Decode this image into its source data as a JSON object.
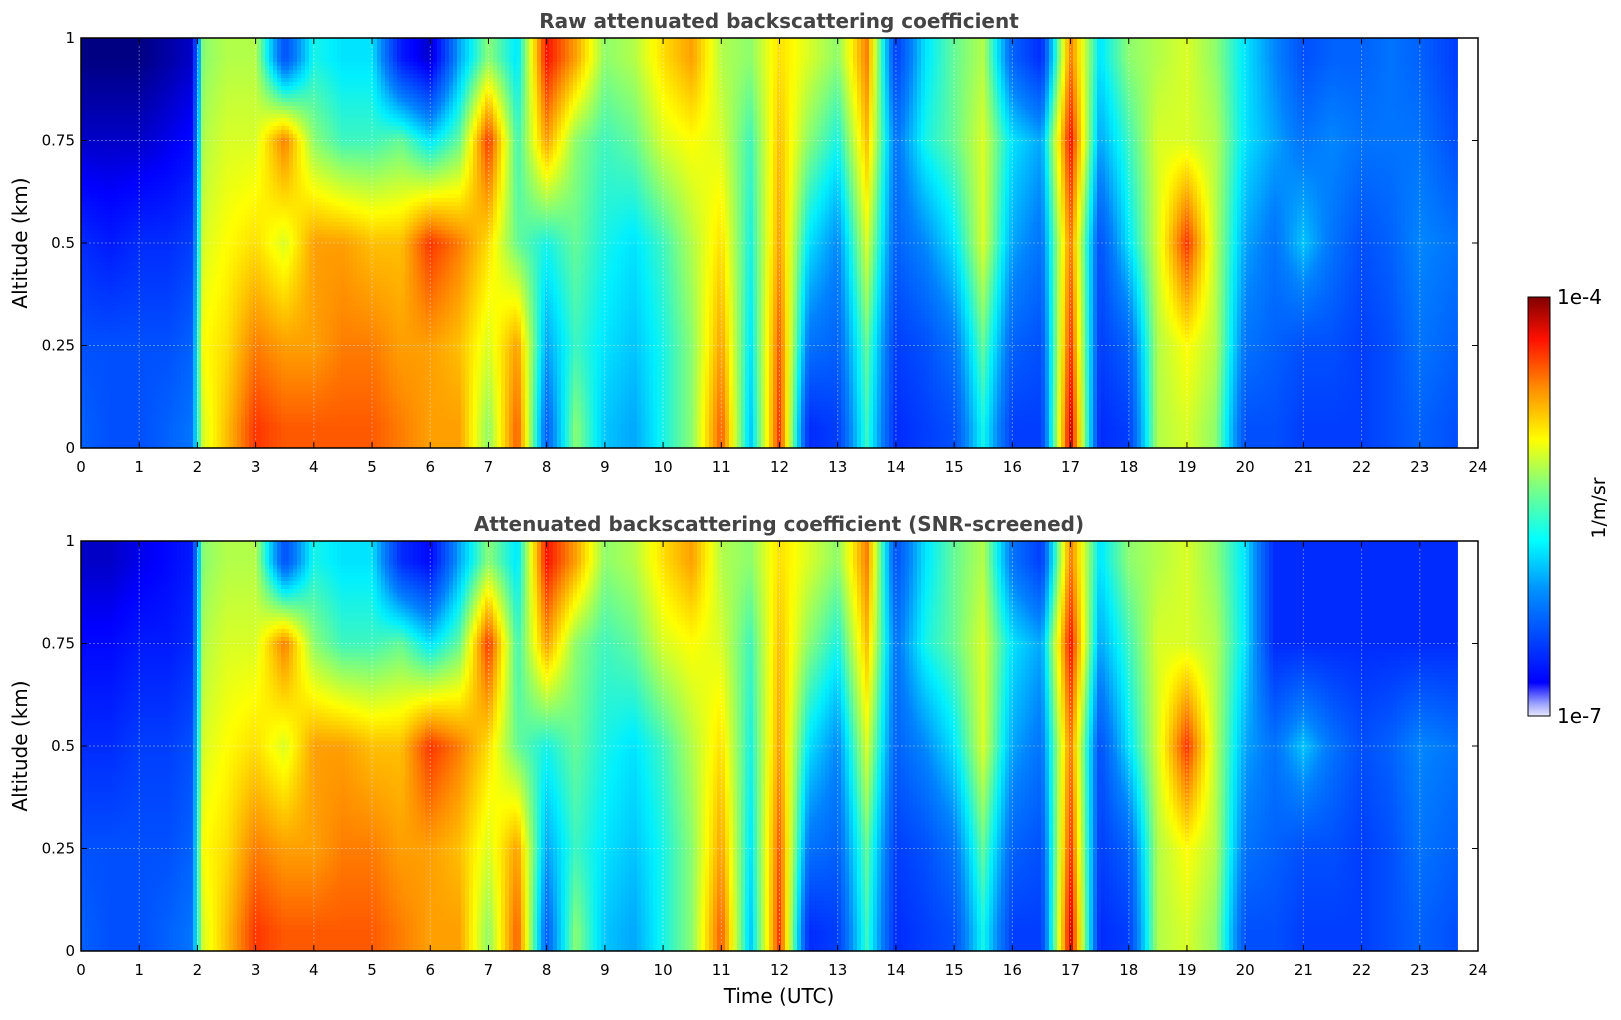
{
  "chart_data": [
    {
      "type": "heatmap",
      "title": "Raw attenuated backscattering coefficient",
      "xlabel": "",
      "ylabel": "Altitude (km)",
      "xlim": [
        0,
        24
      ],
      "ylim": [
        0,
        1
      ],
      "x_ticks": [
        "0",
        "1",
        "2",
        "3",
        "4",
        "5",
        "6",
        "7",
        "8",
        "9",
        "10",
        "11",
        "12",
        "13",
        "14",
        "15",
        "16",
        "17",
        "18",
        "19",
        "20",
        "21",
        "22",
        "23",
        "24"
      ],
      "y_ticks": [
        "0",
        "0.25",
        "0.5",
        "0.75",
        "1"
      ],
      "grid": true,
      "colormap": "jet",
      "color_scale": "log",
      "value_range": [
        "1e-7",
        "1e-4"
      ],
      "x_time_utc_h": [
        0,
        0.5,
        1,
        1.5,
        1.9,
        2.1,
        2.5,
        3,
        3.5,
        4,
        4.5,
        5,
        5.5,
        6,
        6.5,
        7,
        7.5,
        8,
        8.5,
        9,
        9.5,
        10,
        10.5,
        11,
        11.5,
        12,
        12.5,
        13,
        13.5,
        14,
        14.5,
        15,
        15.5,
        16,
        16.5,
        17,
        17.5,
        18,
        18.5,
        19,
        19.5,
        20,
        20.5,
        21,
        21.5,
        22,
        22.5,
        23,
        23.6
      ],
      "y_altitude_km": [
        0.05,
        0.25,
        0.5,
        0.75,
        0.95
      ],
      "log10_values": [
        [
          -6.1,
          -6.2,
          -6.4,
          -6.8,
          -7.0
        ],
        [
          -6.2,
          -6.2,
          -6.5,
          -6.8,
          -7.0
        ],
        [
          -6.2,
          -6.2,
          -6.4,
          -6.8,
          -7.0
        ],
        [
          -6.1,
          -6.2,
          -6.4,
          -6.7,
          -6.9
        ],
        [
          -6.0,
          -6.1,
          -6.3,
          -6.6,
          -6.8
        ],
        [
          -5.0,
          -4.9,
          -5.0,
          -5.1,
          -5.2
        ],
        [
          -4.7,
          -4.8,
          -4.9,
          -5.0,
          -5.1
        ],
        [
          -4.3,
          -4.5,
          -4.8,
          -5.0,
          -5.1
        ],
        [
          -4.4,
          -4.6,
          -5.0,
          -4.5,
          -6.2
        ],
        [
          -4.4,
          -4.6,
          -4.6,
          -5.2,
          -5.5
        ],
        [
          -4.4,
          -4.5,
          -4.6,
          -5.4,
          -5.6
        ],
        [
          -4.4,
          -4.5,
          -4.7,
          -5.4,
          -5.6
        ],
        [
          -4.5,
          -4.6,
          -4.7,
          -5.3,
          -6.5
        ],
        [
          -4.6,
          -4.6,
          -4.3,
          -5.6,
          -6.8
        ],
        [
          -4.6,
          -4.7,
          -4.5,
          -5.3,
          -5.8
        ],
        [
          -5.2,
          -5.0,
          -4.8,
          -4.3,
          -5.2
        ],
        [
          -4.4,
          -4.6,
          -5.3,
          -5.4,
          -5.6
        ],
        [
          -6.1,
          -5.8,
          -5.5,
          -4.6,
          -4.2
        ],
        [
          -5.2,
          -5.4,
          -5.3,
          -5.2,
          -4.6
        ],
        [
          -5.7,
          -5.6,
          -5.5,
          -5.4,
          -5.2
        ],
        [
          -5.8,
          -5.7,
          -5.6,
          -5.3,
          -5.1
        ],
        [
          -5.5,
          -5.5,
          -5.4,
          -5.0,
          -4.8
        ],
        [
          -5.2,
          -5.2,
          -5.1,
          -4.9,
          -4.6
        ],
        [
          -4.4,
          -4.6,
          -4.8,
          -5.0,
          -5.1
        ],
        [
          -5.7,
          -5.6,
          -5.5,
          -5.4,
          -5.2
        ],
        [
          -4.3,
          -4.4,
          -4.6,
          -4.7,
          -4.8
        ],
        [
          -6.4,
          -6.0,
          -5.6,
          -5.2,
          -5.0
        ],
        [
          -6.3,
          -6.1,
          -5.9,
          -5.5,
          -5.2
        ],
        [
          -5.4,
          -5.3,
          -5.0,
          -4.7,
          -4.5
        ],
        [
          -6.4,
          -6.3,
          -6.1,
          -6.0,
          -6.3
        ],
        [
          -6.3,
          -6.2,
          -5.9,
          -5.5,
          -5.6
        ],
        [
          -6.2,
          -6.0,
          -5.6,
          -5.3,
          -5.3
        ],
        [
          -5.5,
          -5.3,
          -5.0,
          -5.0,
          -5.1
        ],
        [
          -6.3,
          -6.1,
          -5.8,
          -5.6,
          -6.1
        ],
        [
          -6.3,
          -6.2,
          -6.0,
          -5.8,
          -6.4
        ],
        [
          -4.1,
          -4.3,
          -4.5,
          -4.2,
          -4.5
        ],
        [
          -6.4,
          -6.3,
          -6.2,
          -5.8,
          -5.6
        ],
        [
          -6.3,
          -6.1,
          -5.6,
          -5.4,
          -5.2
        ],
        [
          -5.1,
          -5.1,
          -5.0,
          -5.0,
          -5.1
        ],
        [
          -5.0,
          -4.9,
          -4.3,
          -5.0,
          -5.0
        ],
        [
          -5.2,
          -5.1,
          -5.1,
          -5.1,
          -5.2
        ],
        [
          -6.2,
          -6.0,
          -5.8,
          -5.6,
          -5.6
        ],
        [
          -6.2,
          -6.1,
          -6.0,
          -5.8,
          -5.9
        ],
        [
          -6.3,
          -6.2,
          -5.7,
          -6.0,
          -6.2
        ],
        [
          -6.3,
          -6.2,
          -6.0,
          -5.9,
          -6.1
        ],
        [
          -6.3,
          -6.3,
          -6.2,
          -6.0,
          -6.1
        ],
        [
          -6.2,
          -6.2,
          -6.1,
          -6.0,
          -6.0
        ],
        [
          -6.1,
          -6.0,
          -5.9,
          -6.0,
          -6.1
        ],
        [
          -6.2,
          -6.1,
          -6.0,
          -6.2,
          -6.3
        ]
      ]
    },
    {
      "type": "heatmap",
      "title": "Attenuated backscattering coefficient (SNR-screened)",
      "xlabel": "Time (UTC)",
      "ylabel": "Altitude (km)",
      "xlim": [
        0,
        24
      ],
      "ylim": [
        0,
        1
      ],
      "x_ticks": [
        "0",
        "1",
        "2",
        "3",
        "4",
        "5",
        "6",
        "7",
        "8",
        "9",
        "10",
        "11",
        "12",
        "13",
        "14",
        "15",
        "16",
        "17",
        "18",
        "19",
        "20",
        "21",
        "22",
        "23",
        "24"
      ],
      "y_ticks": [
        "0",
        "0.25",
        "0.5",
        "0.75",
        "1"
      ],
      "grid": true,
      "colormap": "jet",
      "color_scale": "log",
      "value_range": [
        "1e-7",
        "1e-4"
      ],
      "x_time_utc_h": [
        0,
        0.5,
        1,
        1.5,
        1.9,
        2.1,
        2.5,
        3,
        3.5,
        4,
        4.5,
        5,
        5.5,
        6,
        6.5,
        7,
        7.5,
        8,
        8.5,
        9,
        9.5,
        10,
        10.5,
        11,
        11.5,
        12,
        12.5,
        13,
        13.5,
        14,
        14.5,
        15,
        15.5,
        16,
        16.5,
        17,
        17.5,
        18,
        18.5,
        19,
        19.5,
        20,
        20.5,
        21,
        21.5,
        22,
        22.5,
        23,
        23.6
      ],
      "y_altitude_km": [
        0.05,
        0.25,
        0.5,
        0.75,
        0.95
      ],
      "log10_values": [
        [
          -6.1,
          -6.2,
          -6.4,
          -6.6,
          -6.8
        ],
        [
          -6.2,
          -6.2,
          -6.4,
          -6.6,
          -6.8
        ],
        [
          -6.2,
          -6.2,
          -6.3,
          -6.5,
          -6.7
        ],
        [
          -6.1,
          -6.2,
          -6.3,
          -6.5,
          -6.6
        ],
        [
          -6.0,
          -6.1,
          -6.2,
          -6.4,
          -6.5
        ],
        [
          -5.0,
          -4.9,
          -5.0,
          -5.1,
          -5.2
        ],
        [
          -4.7,
          -4.8,
          -4.9,
          -5.0,
          -5.1
        ],
        [
          -4.3,
          -4.5,
          -4.8,
          -5.0,
          -5.1
        ],
        [
          -4.4,
          -4.6,
          -5.0,
          -4.5,
          -6.2
        ],
        [
          -4.4,
          -4.6,
          -4.6,
          -5.2,
          -5.5
        ],
        [
          -4.4,
          -4.5,
          -4.6,
          -5.4,
          -5.6
        ],
        [
          -4.4,
          -4.5,
          -4.7,
          -5.4,
          -5.6
        ],
        [
          -4.5,
          -4.6,
          -4.7,
          -5.3,
          -6.4
        ],
        [
          -4.6,
          -4.6,
          -4.3,
          -5.6,
          -6.6
        ],
        [
          -4.6,
          -4.7,
          -4.5,
          -5.3,
          -5.8
        ],
        [
          -5.2,
          -5.0,
          -4.8,
          -4.3,
          -5.2
        ],
        [
          -4.4,
          -4.6,
          -5.3,
          -5.4,
          -5.6
        ],
        [
          -6.1,
          -5.8,
          -5.5,
          -4.6,
          -4.2
        ],
        [
          -5.2,
          -5.4,
          -5.3,
          -5.2,
          -4.6
        ],
        [
          -5.7,
          -5.6,
          -5.5,
          -5.4,
          -5.2
        ],
        [
          -5.8,
          -5.7,
          -5.6,
          -5.3,
          -5.1
        ],
        [
          -5.5,
          -5.5,
          -5.4,
          -5.0,
          -4.8
        ],
        [
          -5.2,
          -5.2,
          -5.1,
          -4.9,
          -4.6
        ],
        [
          -4.4,
          -4.6,
          -4.8,
          -5.0,
          -5.1
        ],
        [
          -5.7,
          -5.6,
          -5.5,
          -5.4,
          -5.2
        ],
        [
          -4.3,
          -4.4,
          -4.6,
          -4.7,
          -4.8
        ],
        [
          -6.4,
          -6.0,
          -5.6,
          -5.2,
          -5.0
        ],
        [
          -6.3,
          -6.1,
          -5.9,
          -5.5,
          -5.2
        ],
        [
          -5.4,
          -5.3,
          -5.0,
          -4.7,
          -4.5
        ],
        [
          -6.4,
          -6.3,
          -6.1,
          -6.0,
          -6.2
        ],
        [
          -6.3,
          -6.2,
          -5.9,
          -5.5,
          -5.6
        ],
        [
          -6.2,
          -6.0,
          -5.6,
          -5.3,
          -5.3
        ],
        [
          -5.5,
          -5.3,
          -5.0,
          -5.0,
          -5.1
        ],
        [
          -6.3,
          -6.1,
          -5.8,
          -5.6,
          -6.0
        ],
        [
          -6.3,
          -6.2,
          -6.0,
          -5.8,
          -6.3
        ],
        [
          -4.1,
          -4.3,
          -4.5,
          -4.2,
          -4.5
        ],
        [
          -6.4,
          -6.3,
          -6.2,
          -5.8,
          -5.6
        ],
        [
          -6.3,
          -6.1,
          -5.6,
          -5.4,
          -5.2
        ],
        [
          -5.1,
          -5.1,
          -5.0,
          -5.0,
          -5.1
        ],
        [
          -5.0,
          -4.9,
          -4.3,
          -5.0,
          -5.0
        ],
        [
          -5.2,
          -5.1,
          -5.1,
          -5.1,
          -5.2
        ],
        [
          -6.2,
          -6.0,
          -5.8,
          -5.6,
          -5.6
        ],
        [
          -6.2,
          -6.1,
          -6.0,
          -6.4,
          -6.4
        ],
        [
          -6.3,
          -6.2,
          -5.7,
          -6.4,
          -6.4
        ],
        [
          -6.3,
          -6.2,
          -6.0,
          -6.4,
          -6.4
        ],
        [
          -6.3,
          -6.3,
          -6.2,
          -6.4,
          -6.4
        ],
        [
          -6.2,
          -6.2,
          -6.1,
          -6.4,
          -6.4
        ],
        [
          -6.1,
          -6.0,
          -5.9,
          -6.4,
          -6.4
        ],
        [
          -6.2,
          -6.1,
          -6.0,
          -6.4,
          -6.4
        ]
      ]
    }
  ],
  "colorbar": {
    "max_label": "1e-4",
    "min_label": "1e-7",
    "label": "1/m/sr"
  }
}
